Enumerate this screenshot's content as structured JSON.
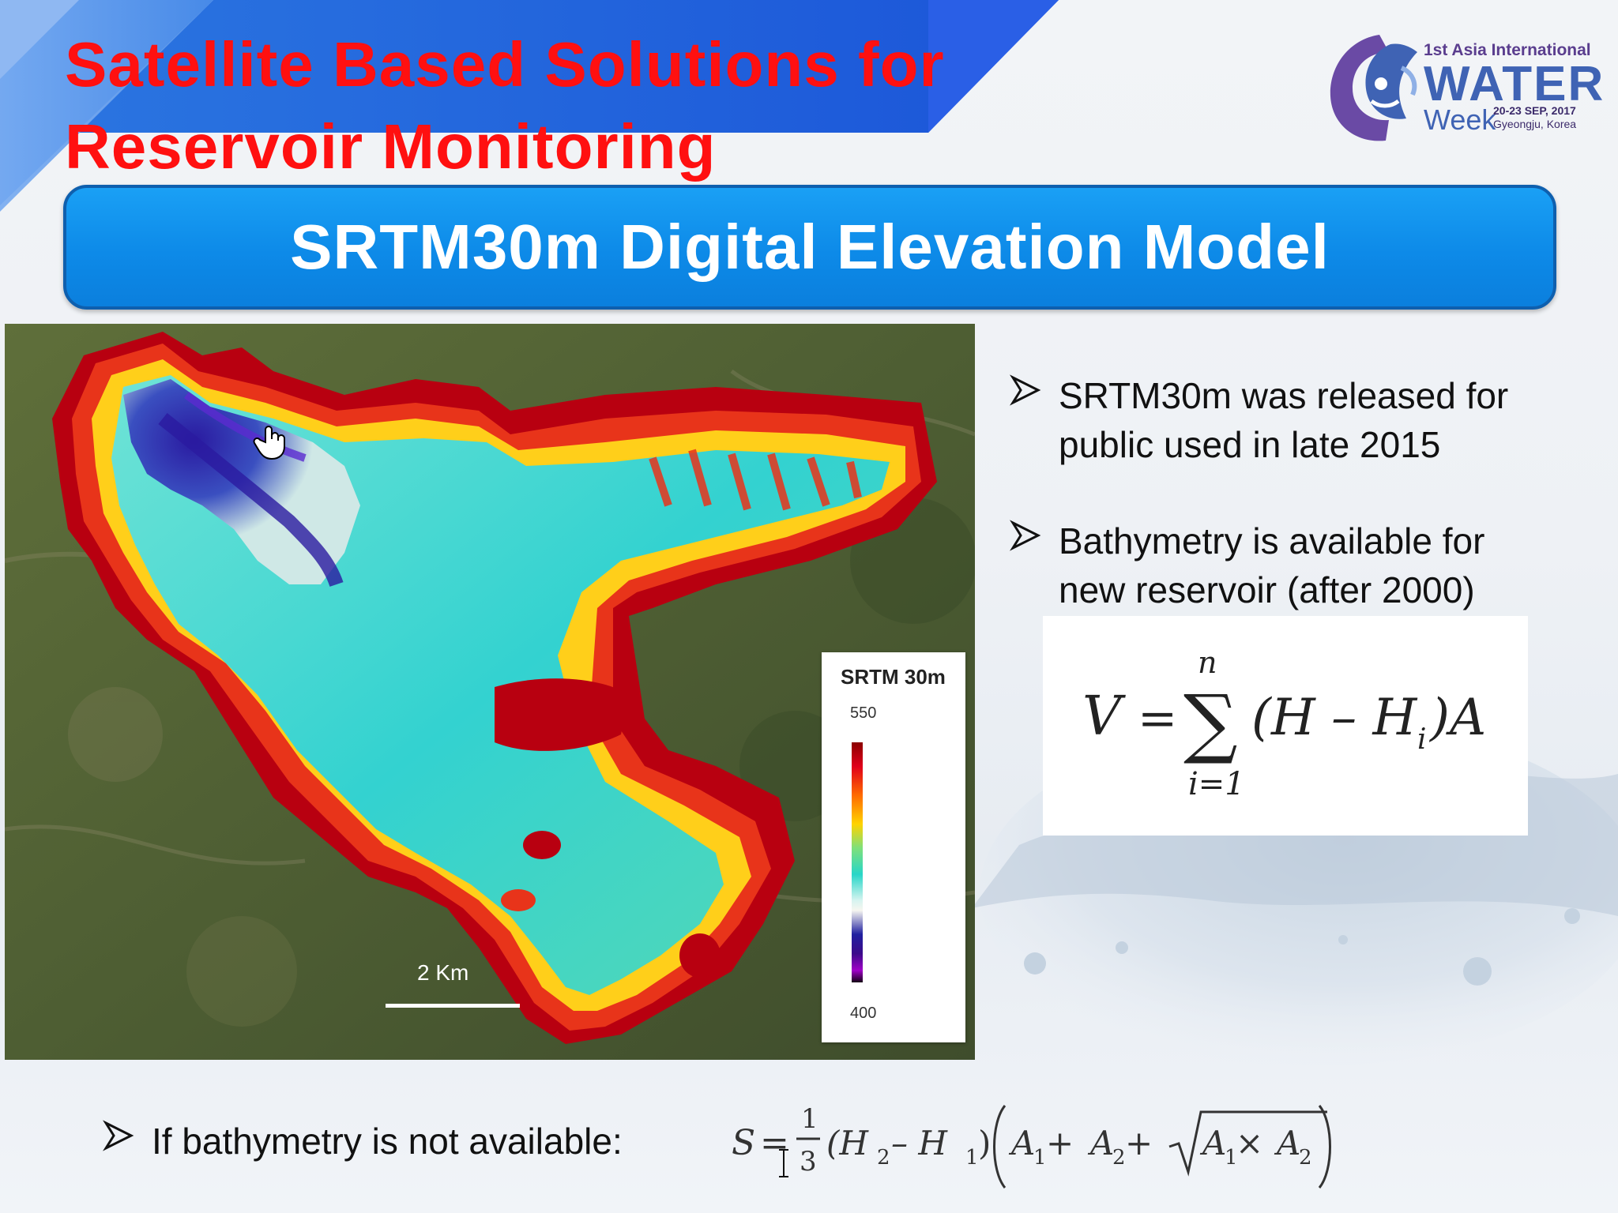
{
  "slide": {
    "title_line1": "Satellite Based Solutions for",
    "title_line2": "Reservoir Monitoring",
    "subtitle": "SRTM30m Digital Elevation Model"
  },
  "logo": {
    "line1": "1st Asia International",
    "water": "WATER",
    "week": "Week",
    "date": "20-23 SEP, 2017",
    "place": "Gyeongju, Korea"
  },
  "map": {
    "scale_label": "2 Km",
    "legend": {
      "title": "SRTM 30m",
      "max": "550",
      "min": "400"
    }
  },
  "bullets": [
    {
      "line1": "SRTM30m was released for",
      "line2": "public used in late 2015"
    },
    {
      "line1": "Bathymetry is available for",
      "line2": "new reservoir (after 2000)"
    }
  ],
  "bottom_bullet": "If bathymetry is not available:",
  "formula1": {
    "lhs": "V",
    "eq": "=",
    "upper": "n",
    "lower": "i=1",
    "sigma": "∑",
    "body": "(H – H",
    "sub": "i",
    "tail": ")A"
  },
  "formula2": {
    "lhs": "S",
    "eq": "=",
    "num": "1",
    "den": "3",
    "part1": "(H",
    "s2": "2",
    "part2": " – H",
    "s1": "1",
    "part3": ")",
    "a1": "A",
    "sa1": "1",
    "plus1": " + ",
    "a2": "A",
    "sa2": "2",
    "plus2": " + ",
    "r1": "A",
    "sr1": "1",
    "times": " × ",
    "r2": "A",
    "sr2": "2"
  }
}
